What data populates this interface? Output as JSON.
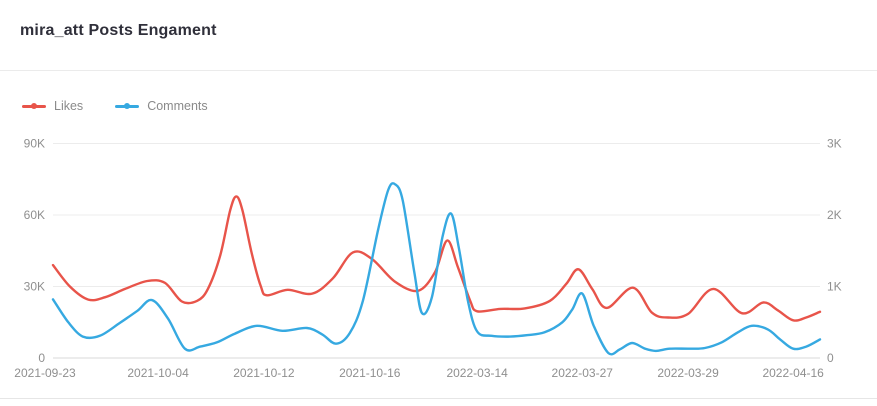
{
  "header": {
    "title": "mira_att Posts Engament"
  },
  "legend": {
    "items": [
      {
        "label": "Likes",
        "color": "#e8544a"
      },
      {
        "label": "Comments",
        "color": "#36a9e1"
      }
    ]
  },
  "chart_data": {
    "type": "line",
    "title": "mira_att Posts Engament",
    "grid": true,
    "legend_position": "top-left",
    "x_ticks": [
      {
        "label": "2021-09-23",
        "pos": 0.0
      },
      {
        "label": "2021-10-04",
        "pos": 0.137
      },
      {
        "label": "2021-10-12",
        "pos": 0.275
      },
      {
        "label": "2021-10-16",
        "pos": 0.413
      },
      {
        "label": "2022-03-14",
        "pos": 0.553
      },
      {
        "label": "2022-03-27",
        "pos": 0.69
      },
      {
        "label": "2022-03-29",
        "pos": 0.828
      },
      {
        "label": "2022-04-16",
        "pos": 0.965
      }
    ],
    "left_axis": {
      "series": "Likes",
      "ticks": [
        "0",
        "30K",
        "60K",
        "90K"
      ],
      "min": 0,
      "max": 90000
    },
    "right_axis": {
      "series": "Comments",
      "ticks": [
        "0",
        "1K",
        "2K",
        "3K"
      ],
      "min": 0,
      "max": 3000
    },
    "series": [
      {
        "name": "Likes",
        "axis": "left",
        "color": "#e8544a",
        "points": [
          [
            0.0,
            39000
          ],
          [
            0.022,
            30000
          ],
          [
            0.046,
            24500
          ],
          [
            0.068,
            25500
          ],
          [
            0.094,
            29000
          ],
          [
            0.123,
            32300
          ],
          [
            0.146,
            31500
          ],
          [
            0.168,
            23700
          ],
          [
            0.188,
            24000
          ],
          [
            0.202,
            29000
          ],
          [
            0.218,
            43000
          ],
          [
            0.231,
            62000
          ],
          [
            0.239,
            67800
          ],
          [
            0.247,
            62000
          ],
          [
            0.259,
            44000
          ],
          [
            0.271,
            30000
          ],
          [
            0.279,
            26300
          ],
          [
            0.306,
            28600
          ],
          [
            0.338,
            27000
          ],
          [
            0.365,
            33500
          ],
          [
            0.391,
            44300
          ],
          [
            0.416,
            41500
          ],
          [
            0.446,
            32000
          ],
          [
            0.476,
            28200
          ],
          [
            0.498,
            36000
          ],
          [
            0.514,
            49300
          ],
          [
            0.528,
            38000
          ],
          [
            0.544,
            24000
          ],
          [
            0.553,
            19600
          ],
          [
            0.583,
            20600
          ],
          [
            0.615,
            20800
          ],
          [
            0.648,
            24000
          ],
          [
            0.669,
            31000
          ],
          [
            0.685,
            37200
          ],
          [
            0.703,
            29000
          ],
          [
            0.722,
            21000
          ],
          [
            0.756,
            29500
          ],
          [
            0.781,
            19000
          ],
          [
            0.802,
            17000
          ],
          [
            0.828,
            18500
          ],
          [
            0.861,
            29000
          ],
          [
            0.898,
            18800
          ],
          [
            0.926,
            23300
          ],
          [
            0.945,
            20000
          ],
          [
            0.965,
            15800
          ],
          [
            0.982,
            17000
          ],
          [
            1.0,
            19400
          ]
        ]
      },
      {
        "name": "Comments",
        "axis": "right",
        "color": "#36a9e1",
        "points": [
          [
            0.0,
            820
          ],
          [
            0.02,
            500
          ],
          [
            0.039,
            300
          ],
          [
            0.061,
            310
          ],
          [
            0.087,
            490
          ],
          [
            0.11,
            660
          ],
          [
            0.129,
            810
          ],
          [
            0.15,
            550
          ],
          [
            0.172,
            130
          ],
          [
            0.192,
            160
          ],
          [
            0.214,
            220
          ],
          [
            0.237,
            340
          ],
          [
            0.266,
            450
          ],
          [
            0.299,
            380
          ],
          [
            0.331,
            420
          ],
          [
            0.351,
            330
          ],
          [
            0.369,
            200
          ],
          [
            0.387,
            350
          ],
          [
            0.404,
            800
          ],
          [
            0.424,
            1800
          ],
          [
            0.437,
            2350
          ],
          [
            0.446,
            2430
          ],
          [
            0.456,
            2200
          ],
          [
            0.471,
            1200
          ],
          [
            0.481,
            630
          ],
          [
            0.494,
            850
          ],
          [
            0.508,
            1700
          ],
          [
            0.519,
            2020
          ],
          [
            0.529,
            1550
          ],
          [
            0.541,
            800
          ],
          [
            0.553,
            370
          ],
          [
            0.572,
            310
          ],
          [
            0.596,
            300
          ],
          [
            0.619,
            320
          ],
          [
            0.641,
            360
          ],
          [
            0.664,
            500
          ],
          [
            0.677,
            680
          ],
          [
            0.69,
            900
          ],
          [
            0.705,
            450
          ],
          [
            0.724,
            70
          ],
          [
            0.739,
            120
          ],
          [
            0.755,
            210
          ],
          [
            0.772,
            130
          ],
          [
            0.786,
            100
          ],
          [
            0.804,
            130
          ],
          [
            0.83,
            130
          ],
          [
            0.85,
            140
          ],
          [
            0.872,
            220
          ],
          [
            0.893,
            360
          ],
          [
            0.911,
            450
          ],
          [
            0.932,
            400
          ],
          [
            0.948,
            260
          ],
          [
            0.965,
            130
          ],
          [
            0.982,
            160
          ],
          [
            1.0,
            260
          ]
        ]
      }
    ]
  }
}
